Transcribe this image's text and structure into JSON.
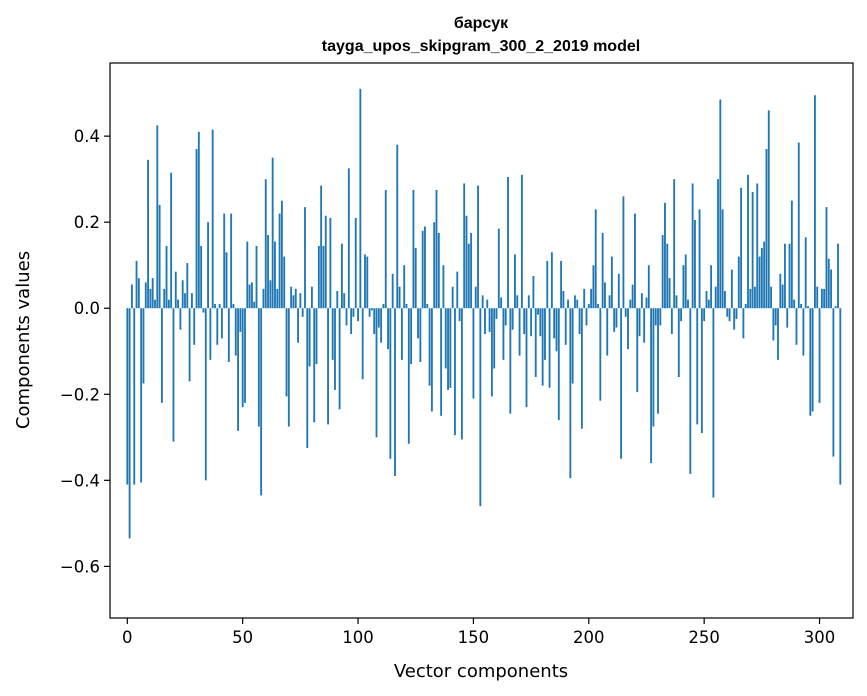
{
  "chart_data": {
    "type": "bar",
    "title_line1": "барсук",
    "title_line2": "tayga_upos_skipgram_300_2_2019 model",
    "xlabel": "Vector components",
    "ylabel": "Components values",
    "xlim": [
      -7.5,
      314.5
    ],
    "ylim": [
      -0.72,
      0.57
    ],
    "xticks": [
      0,
      50,
      100,
      150,
      200,
      250,
      300
    ],
    "yticks": [
      -0.6,
      -0.4,
      -0.2,
      0.0,
      0.2,
      0.4
    ],
    "ytick_labels": [
      "−0.6",
      "−0.4",
      "−0.2",
      "0.0",
      "0.2",
      "0.4"
    ],
    "xtick_labels": [
      "0",
      "50",
      "100",
      "150",
      "200",
      "250",
      "300"
    ],
    "bar_color": "#1f77b4",
    "grid": false,
    "values": [
      -0.41,
      -0.535,
      0.055,
      -0.41,
      0.11,
      0.07,
      -0.405,
      -0.175,
      0.06,
      0.345,
      0.045,
      0.07,
      0.02,
      0.425,
      0.24,
      -0.22,
      0.045,
      0.145,
      0.02,
      0.315,
      -0.31,
      0.085,
      0.02,
      -0.05,
      0.065,
      0.035,
      0.105,
      -0.17,
      0.035,
      -0.085,
      0.37,
      0.41,
      0.145,
      -0.01,
      -0.4,
      0.2,
      -0.12,
      0.415,
      0.01,
      -0.085,
      0.01,
      -0.07,
      0.22,
      0.13,
      -0.125,
      0.22,
      0.01,
      -0.11,
      -0.285,
      -0.055,
      -0.23,
      -0.22,
      0.155,
      0.055,
      0.06,
      0.015,
      0.145,
      -0.275,
      -0.435,
      0.045,
      0.3,
      0.17,
      0.065,
      0.35,
      0.155,
      0.045,
      0.22,
      0.25,
      0.12,
      -0.205,
      -0.275,
      0.05,
      0.03,
      0.045,
      -0.08,
      0.035,
      -0.02,
      0.235,
      -0.325,
      -0.135,
      0.05,
      -0.265,
      -0.13,
      0.145,
      0.285,
      0.145,
      0.215,
      -0.27,
      0.21,
      -0.12,
      -0.19,
      0.04,
      -0.235,
      0.15,
      0.035,
      -0.04,
      0.325,
      -0.06,
      -0.02,
      0.21,
      -0.03,
      0.51,
      -0.165,
      0.125,
      0.12,
      -0.02,
      -0.005,
      -0.06,
      -0.3,
      -0.045,
      -0.08,
      0.01,
      0.275,
      -0.095,
      -0.35,
      0.08,
      -0.39,
      0.38,
      0.05,
      -0.12,
      0.1,
      0.01,
      -0.315,
      -0.13,
      0.275,
      0.14,
      -0.07,
      -0.125,
      0.18,
      0.19,
      0.01,
      -0.18,
      -0.24,
      0.2,
      0.275,
      0.175,
      -0.25,
      0.1,
      -0.14,
      -0.19,
      -0.185,
      0.05,
      -0.295,
      0.085,
      -0.03,
      -0.305,
      0.29,
      0.215,
      0.15,
      0.175,
      -0.21,
      0.05,
      0.285,
      -0.46,
      0.03,
      -0.06,
      0.02,
      -0.055,
      -0.205,
      -0.14,
      -0.025,
      0.185,
      0.025,
      -0.12,
      -0.04,
      0.305,
      -0.245,
      -0.05,
      0.125,
      0.03,
      -0.11,
      0.31,
      -0.06,
      -0.23,
      0.03,
      -0.065,
      0.075,
      -0.16,
      -0.015,
      -0.065,
      -0.18,
      -0.12,
      0.11,
      -0.185,
      0.13,
      -0.07,
      -0.1,
      -0.26,
      0.11,
      0.04,
      -0.085,
      0.02,
      -0.395,
      -0.175,
      0.03,
      0.02,
      -0.06,
      -0.28,
      0.045,
      -0.04,
      0.01,
      0.045,
      0.1,
      0.23,
      0.01,
      -0.215,
      0.175,
      0.06,
      -0.11,
      0.03,
      0.12,
      -0.055,
      -0.045,
      0.08,
      -0.35,
      0.26,
      -0.02,
      -0.095,
      0.02,
      0.055,
      0.22,
      -0.195,
      -0.065,
      0.035,
      -0.08,
      0.025,
      0.1,
      -0.36,
      -0.275,
      -0.04,
      -0.245,
      -0.04,
      0.17,
      0.245,
      0.15,
      0.07,
      -0.06,
      0.3,
      0.03,
      -0.16,
      -0.03,
      0.1,
      0.125,
      0.02,
      -0.385,
      0.29,
      0.205,
      -0.27,
      0.23,
      -0.29,
      -0.03,
      0.04,
      0.02,
      0.1,
      -0.44,
      0.05,
      0.3,
      0.485,
      0.23,
      0.04,
      -0.02,
      -0.03,
      0.09,
      -0.05,
      -0.025,
      0.12,
      0.28,
      -0.07,
      0.01,
      0.31,
      0.045,
      0.27,
      0.05,
      0.29,
      0.12,
      0.14,
      0.155,
      0.37,
      0.46,
      0.05,
      -0.075,
      -0.04,
      -0.12,
      0.08,
      0.055,
      0.15,
      -0.045,
      0.15,
      0.25,
      0.02,
      -0.085,
      0.385,
      0.01,
      -0.11,
      0.165,
      0.005,
      -0.25,
      -0.24,
      0.495,
      0.05,
      -0.22,
      0.045,
      0.045,
      0.235,
      0.115,
      0.09,
      -0.345,
      0.005,
      0.15,
      -0.41
    ]
  }
}
